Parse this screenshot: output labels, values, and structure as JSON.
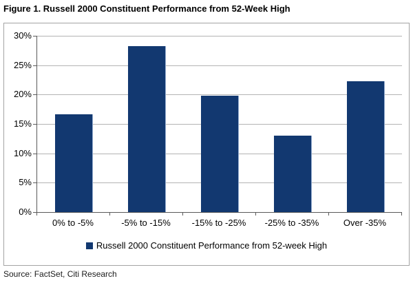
{
  "title": "Figure 1. Russell 2000 Constituent Performance from 52-Week High",
  "source": "Source: FactSet, Citi Research",
  "legend_label": "Russell 2000 Constituent Performance from 52-week High",
  "colors": {
    "bar": "#123870",
    "bar_edge": "#8fa8cc",
    "gridline": "#b3b3b3",
    "axis": "#595959",
    "frame_border": "#a3a3a3"
  },
  "chart_data": {
    "type": "bar",
    "title": "Figure 1. Russell 2000 Constituent Performance from 52-Week High",
    "categories": [
      "0% to -5%",
      "-5% to -15%",
      "-15% to -25%",
      "-25% to -35%",
      "Over -35%"
    ],
    "values": [
      16.6,
      28.3,
      19.8,
      13.0,
      22.3
    ],
    "series_name": "Russell 2000 Constituent Performance from 52-week High",
    "xlabel": "",
    "ylabel": "",
    "ylim": [
      0,
      30
    ],
    "ytick_step": 5,
    "ytick_suffix": "%",
    "grid": true,
    "legend_position": "bottom"
  }
}
